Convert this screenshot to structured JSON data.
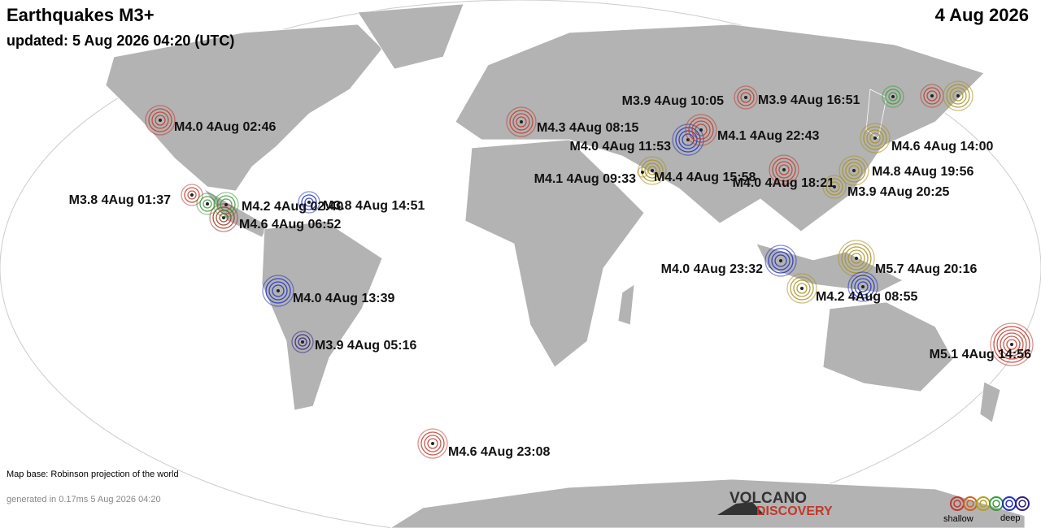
{
  "header": {
    "title": "Earthquakes M3+",
    "updated": "updated:  5 Aug 2026 04:20 (UTC)",
    "date": "4 Aug 2026"
  },
  "quakes": [
    {
      "label": "M4.0 4Aug 02:46",
      "color": "#c0392b"
    },
    {
      "label": "M3.8 4Aug 01:37",
      "color": "#c0392b"
    },
    {
      "label": "M4.2 4Aug 02:40",
      "color": "#3a9a3a"
    },
    {
      "label": "M3.8 4Aug 14:51",
      "color": "#2030c0"
    },
    {
      "label": "M4.6 4Aug 06:52",
      "color": "#a03020"
    },
    {
      "label": "M4.0 4Aug 13:39",
      "color": "#2030c0"
    },
    {
      "label": "M3.9 4Aug 05:16",
      "color": "#302080"
    },
    {
      "label": "M4.6 4Aug 23:08",
      "color": "#c0392b"
    },
    {
      "label": "M4.3 4Aug 08:15",
      "color": "#c0392b"
    },
    {
      "label": "M4.0 4Aug 11:53",
      "color": "#2030c0"
    },
    {
      "label": "M4.1 4Aug 22:43",
      "color": "#c0392b"
    },
    {
      "label": "M3.9 4Aug 10:05",
      "color": "#3a9a3a"
    },
    {
      "label": "M3.9 4Aug 16:51",
      "color": "#c0392b"
    },
    {
      "label": "M4.1 4Aug 09:33",
      "color": "#a89020"
    },
    {
      "label": "M4.4 4Aug 15:58",
      "color": "#a89020"
    },
    {
      "label": "M4.0 4Aug 18:21",
      "color": "#c0392b"
    },
    {
      "label": "M4.6 4Aug 14:00",
      "color": "#a89020"
    },
    {
      "label": "M4.8 4Aug 19:56",
      "color": "#a89020"
    },
    {
      "label": "M3.9 4Aug 20:25",
      "color": "#a89020"
    },
    {
      "label": "M4.0 4Aug 23:32",
      "color": "#2030c0"
    },
    {
      "label": "M5.7 4Aug 20:16",
      "color": "#a89020"
    },
    {
      "label": "M4.2 4Aug 08:55",
      "color": "#a89020"
    },
    {
      "label": "M5.1 4Aug 14:56",
      "color": "#c0392b"
    }
  ],
  "footer": {
    "map_base": "Map base: Robinson projection of the world",
    "generated": "generated in 0.17ms 5 Aug 2026 04:20"
  },
  "logo": {
    "line1": "VOLCANO",
    "line2": "DISCOVERY"
  },
  "legend": {
    "shallow": "shallow",
    "deep": "deep",
    "colors": [
      "#c0392b",
      "#d06020",
      "#b5a020",
      "#3a9a3a",
      "#2030c0",
      "#302080"
    ]
  }
}
